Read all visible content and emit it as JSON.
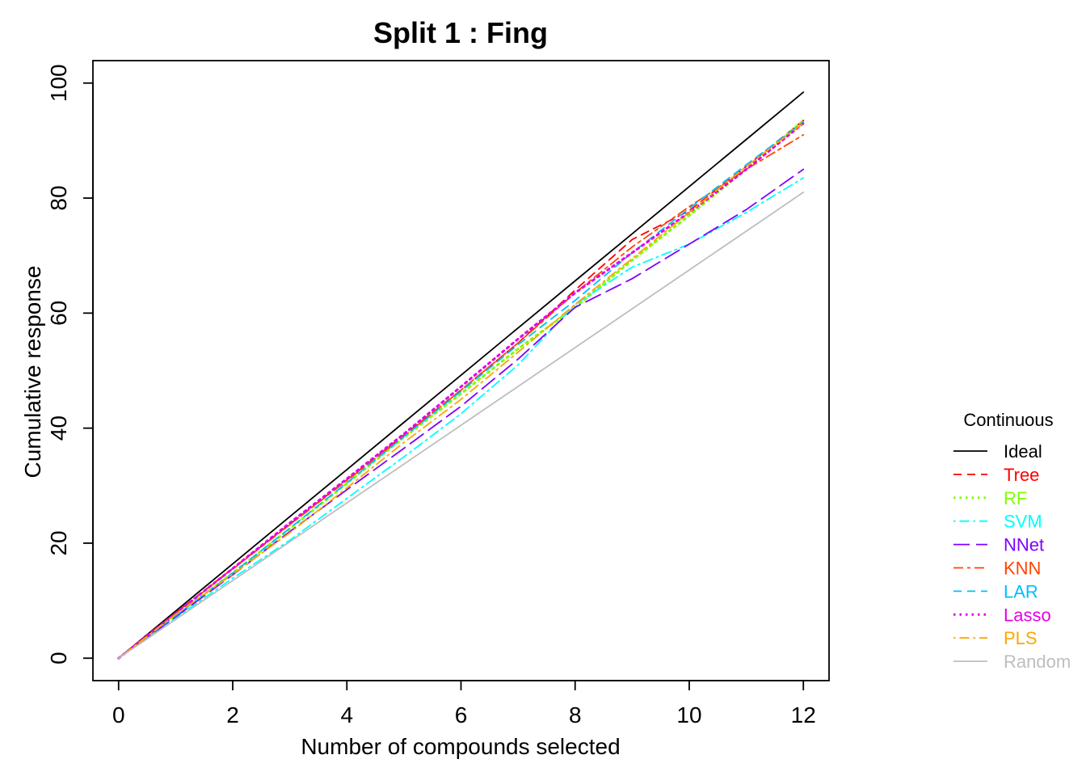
{
  "chart_data": {
    "type": "line",
    "title": "Split 1 : Fing",
    "xlabel": "Number of compounds selected",
    "ylabel": "Cumulative response",
    "xlim": [
      -0.45,
      12.45
    ],
    "ylim": [
      -3.9,
      103.9
    ],
    "xticks": [
      0,
      2,
      4,
      6,
      8,
      10,
      12
    ],
    "yticks": [
      0,
      20,
      40,
      60,
      80,
      100
    ],
    "grid": false,
    "legend": {
      "title": "Continuous",
      "placement": "right-outside"
    },
    "x": [
      0,
      1,
      2,
      3,
      4,
      5,
      6,
      7,
      8,
      9,
      10,
      11,
      12
    ],
    "series": [
      {
        "name": "Ideal",
        "color": "#000000",
        "dash": "solid",
        "values": [
          0,
          8.2,
          16.4,
          24.6,
          32.8,
          41.0,
          49.2,
          57.4,
          65.6,
          73.8,
          82.0,
          90.2,
          98.4
        ]
      },
      {
        "name": "Tree",
        "color": "#FF0000",
        "dash": "dashed",
        "values": [
          0,
          7.9,
          15.6,
          23.3,
          31.0,
          38.8,
          46.6,
          54.8,
          64.0,
          72.8,
          77.8,
          85.5,
          93.5
        ]
      },
      {
        "name": "RF",
        "color": "#7FFF00",
        "dash": "dotted",
        "values": [
          0,
          7.4,
          14.8,
          22.5,
          30.4,
          38.4,
          46.0,
          53.8,
          61.0,
          69.2,
          77.0,
          85.0,
          93.5
        ]
      },
      {
        "name": "SVM",
        "color": "#00FFFF",
        "dash": "dotdash",
        "values": [
          0,
          7.0,
          13.9,
          20.5,
          27.8,
          35.0,
          42.5,
          51.0,
          61.5,
          68.0,
          72.0,
          77.5,
          83.5
        ]
      },
      {
        "name": "NNet",
        "color": "#7F00FF",
        "dash": "longdash",
        "values": [
          0,
          7.2,
          14.5,
          22.0,
          29.3,
          36.5,
          43.8,
          52.0,
          61.0,
          66.0,
          72.0,
          78.0,
          85.0
        ]
      },
      {
        "name": "KNN",
        "color": "#FF4500",
        "dash": "twodash",
        "values": [
          0,
          7.8,
          15.5,
          23.2,
          30.9,
          38.6,
          46.6,
          54.8,
          63.5,
          71.5,
          78.5,
          85.0,
          91.0
        ]
      },
      {
        "name": "LAR",
        "color": "#00BFFF",
        "dash": "dashed",
        "values": [
          0,
          7.4,
          14.8,
          22.6,
          30.5,
          38.5,
          46.4,
          54.5,
          62.2,
          70.5,
          78.2,
          85.8,
          93.2
        ]
      },
      {
        "name": "Lasso",
        "color": "#E500E5",
        "dash": "dotted",
        "values": [
          0,
          7.8,
          15.6,
          23.5,
          31.2,
          39.0,
          47.2,
          55.5,
          63.5,
          70.5,
          77.5,
          85.0,
          93.0
        ]
      },
      {
        "name": "PLS",
        "color": "#FFA500",
        "dash": "dotdash",
        "values": [
          0,
          7.6,
          14.6,
          21.8,
          29.6,
          37.5,
          45.0,
          53.2,
          61.5,
          69.5,
          77.5,
          85.5,
          93.0
        ]
      },
      {
        "name": "Random",
        "color": "#BEBEBE",
        "dash": "solid",
        "values": [
          0,
          6.75,
          13.5,
          20.25,
          27.0,
          33.75,
          40.5,
          47.25,
          54.0,
          60.75,
          67.5,
          74.25,
          81.0
        ]
      }
    ]
  }
}
